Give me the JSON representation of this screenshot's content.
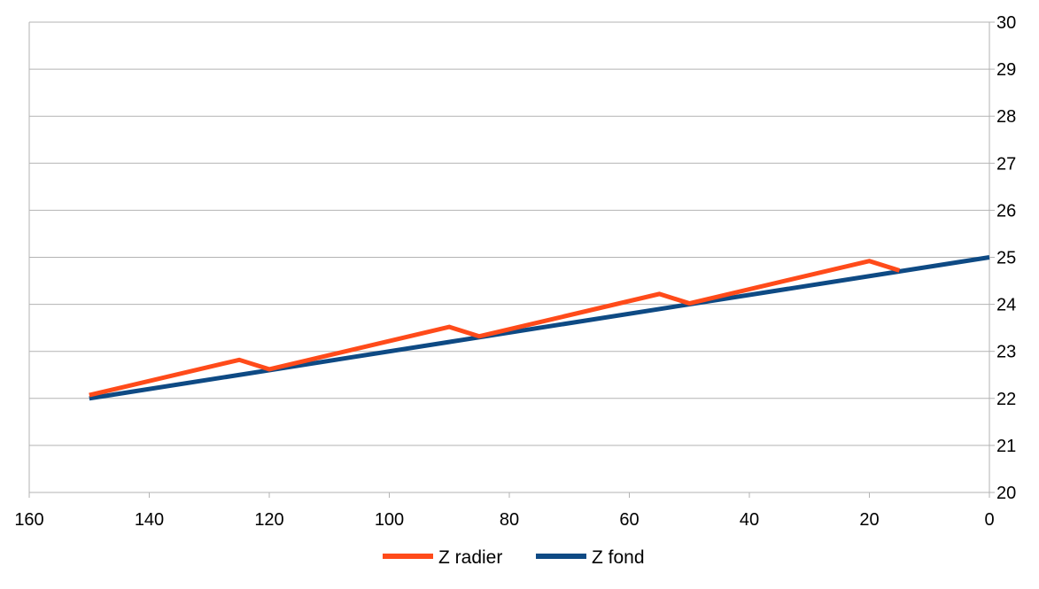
{
  "chart_data": {
    "type": "line",
    "title": "",
    "xlabel": "",
    "ylabel": "",
    "xlim": [
      160,
      0
    ],
    "ylim": [
      20,
      30
    ],
    "x_ticks": [
      160,
      140,
      120,
      100,
      80,
      60,
      40,
      20,
      0
    ],
    "y_ticks": [
      20,
      21,
      22,
      23,
      24,
      25,
      26,
      27,
      28,
      29,
      30
    ],
    "x_axis_reversed": true,
    "y_axis_position": "right",
    "grid": true,
    "legend_position": "bottom",
    "series": [
      {
        "name": "Z radier",
        "color": "#ff4b1a",
        "points": [
          [
            150,
            22.07
          ],
          [
            125,
            22.82
          ],
          [
            120,
            22.62
          ],
          [
            90,
            23.52
          ],
          [
            85,
            23.32
          ],
          [
            55,
            24.22
          ],
          [
            50,
            24.02
          ],
          [
            20,
            24.92
          ],
          [
            15,
            24.72
          ]
        ]
      },
      {
        "name": "Z fond",
        "color": "#0e4a84",
        "points": [
          [
            150,
            22.0
          ],
          [
            0,
            25.0
          ]
        ]
      }
    ]
  }
}
